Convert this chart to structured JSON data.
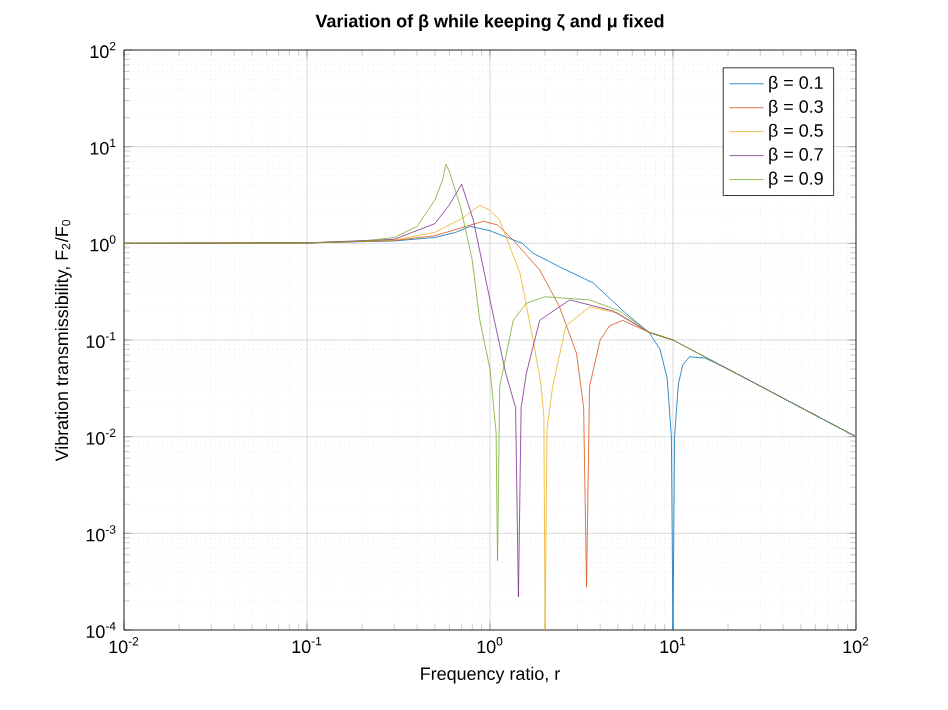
{
  "chart_data": {
    "type": "line",
    "title": "Variation of β while keeping ζ and μ fixed",
    "xlabel": "Frequency ratio, r",
    "ylabel": "Vibration transmissibility, F$_{2}$/F$_{0}$",
    "log": "xy",
    "grid": true,
    "legend": "top right",
    "xlim": [
      0.01,
      100
    ],
    "ylim": [
      0.0001,
      100
    ],
    "xticks": [
      {
        "value": 0.01,
        "label": "10$^{-2}$"
      },
      {
        "value": 0.1,
        "label": "10$^{-1}$"
      },
      {
        "value": 1,
        "label": "10$^{0}$"
      },
      {
        "value": 10,
        "label": "10$^{1}$"
      },
      {
        "value": 100,
        "label": "10$^{2}$"
      }
    ],
    "yticks": [
      {
        "value": 0.0001,
        "label": "10$^{-4}$"
      },
      {
        "value": 0.001,
        "label": "10$^{-3}$"
      },
      {
        "value": 0.01,
        "label": "10$^{-2}$"
      },
      {
        "value": 0.1,
        "label": "10$^{-1}$"
      },
      {
        "value": 1,
        "label": "10$^{0}$"
      },
      {
        "value": 10,
        "label": "10$^{1}$"
      },
      {
        "value": 100,
        "label": "10$^{2}$"
      }
    ],
    "series": [
      {
        "name": "β = 0.1",
        "color": "#0072bd",
        "x": [
          0.01,
          0.1,
          0.3,
          0.5,
          0.65,
          0.78,
          1.0,
          1.5,
          1.72,
          2.5,
          3.66,
          5.5,
          7.4,
          8.5,
          9.3,
          9.8,
          10,
          10.2,
          10.7,
          11.3,
          12.3,
          15,
          20,
          50,
          100
        ],
        "values": [
          1,
          1.01,
          1.06,
          1.15,
          1.3,
          1.5,
          1.35,
          1.0,
          0.79,
          0.55,
          0.39,
          0.19,
          0.12,
          0.08,
          0.04,
          0.01,
          0.0001,
          0.01,
          0.035,
          0.055,
          0.067,
          0.065,
          0.05,
          0.02,
          0.01
        ]
      },
      {
        "name": "β = 0.3",
        "color": "#d95319",
        "x": [
          0.01,
          0.1,
          0.3,
          0.5,
          0.7,
          0.92,
          1.1,
          1.34,
          1.87,
          2.4,
          2.97,
          3.25,
          3.37,
          3.5,
          4.0,
          4.5,
          5.3,
          7.4,
          10
        ],
        "values": [
          1,
          1.01,
          1.07,
          1.2,
          1.45,
          1.69,
          1.55,
          1.08,
          0.53,
          0.22,
          0.073,
          0.02,
          0.00028,
          0.033,
          0.1,
          0.14,
          0.16,
          0.12,
          0.1
        ]
      },
      {
        "name": "β = 0.5",
        "color": "#edb120",
        "x": [
          0.01,
          0.1,
          0.3,
          0.5,
          0.7,
          0.88,
          1.0,
          1.13,
          1.46,
          1.72,
          1.9,
          1.97,
          2.0,
          2.05,
          2.2,
          2.6,
          3.5,
          5,
          7.4,
          10
        ],
        "values": [
          1,
          1.01,
          1.08,
          1.3,
          1.8,
          2.47,
          2.2,
          1.74,
          0.49,
          0.1,
          0.035,
          0.016,
          0.0001,
          0.012,
          0.033,
          0.14,
          0.22,
          0.19,
          0.12,
          0.1
        ]
      },
      {
        "name": "β = 0.7",
        "color": "#7e2f8e",
        "x": [
          0.01,
          0.1,
          0.3,
          0.5,
          0.6,
          0.7,
          0.81,
          1.0,
          1.22,
          1.38,
          1.43,
          1.48,
          1.58,
          1.87,
          2.73,
          4.7,
          7.4,
          10,
          20,
          50,
          100
        ],
        "values": [
          1,
          1.01,
          1.1,
          1.6,
          2.5,
          4.1,
          1.75,
          0.26,
          0.045,
          0.02,
          0.00022,
          0.02,
          0.045,
          0.16,
          0.26,
          0.2,
          0.12,
          0.1,
          0.05,
          0.02,
          0.01
        ]
      },
      {
        "name": "β = 0.9",
        "color": "#77ac30",
        "x": [
          0.01,
          0.1,
          0.2,
          0.3,
          0.4,
          0.5,
          0.55,
          0.575,
          0.6,
          0.69,
          0.8,
          0.88,
          1.0,
          1.08,
          1.1,
          1.13,
          1.34,
          1.58,
          2.0,
          3.5,
          5.1,
          7.4,
          10,
          20,
          50,
          100
        ],
        "values": [
          1,
          1.01,
          1.05,
          1.15,
          1.5,
          2.8,
          4.5,
          6.6,
          5.5,
          2.4,
          0.67,
          0.16,
          0.05,
          0.011,
          0.00052,
          0.033,
          0.16,
          0.24,
          0.28,
          0.26,
          0.2,
          0.12,
          0.1,
          0.05,
          0.02,
          0.01
        ]
      }
    ]
  }
}
